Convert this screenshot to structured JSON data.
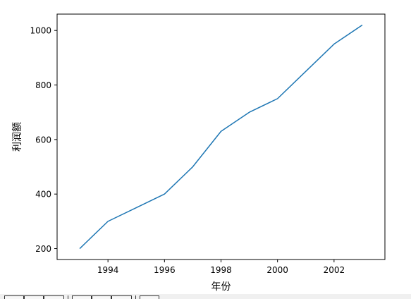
{
  "chart_data": {
    "type": "line",
    "title": "",
    "xlabel": "年份",
    "ylabel": "利润额",
    "xlim": [
      1992.2,
      2003.8
    ],
    "ylim": [
      160,
      1060
    ],
    "xticks": [
      1994,
      1996,
      1998,
      2000,
      2002
    ],
    "yticks": [
      200,
      400,
      600,
      800,
      1000
    ],
    "grid": false,
    "legend": "none",
    "series": [
      {
        "color": "#1f77b4",
        "x": [
          1993,
          1994,
          1995,
          1996,
          1997,
          1998,
          1999,
          2000,
          2001,
          2002,
          2003
        ],
        "y": [
          200,
          300,
          350,
          400,
          500,
          630,
          700,
          750,
          850,
          950,
          1020
        ]
      }
    ]
  },
  "toolbar": {
    "buttons": [
      "home-icon",
      "back-icon",
      "forward-icon",
      "pan-icon",
      "zoom-icon",
      "configure-icon",
      "save-icon"
    ]
  }
}
